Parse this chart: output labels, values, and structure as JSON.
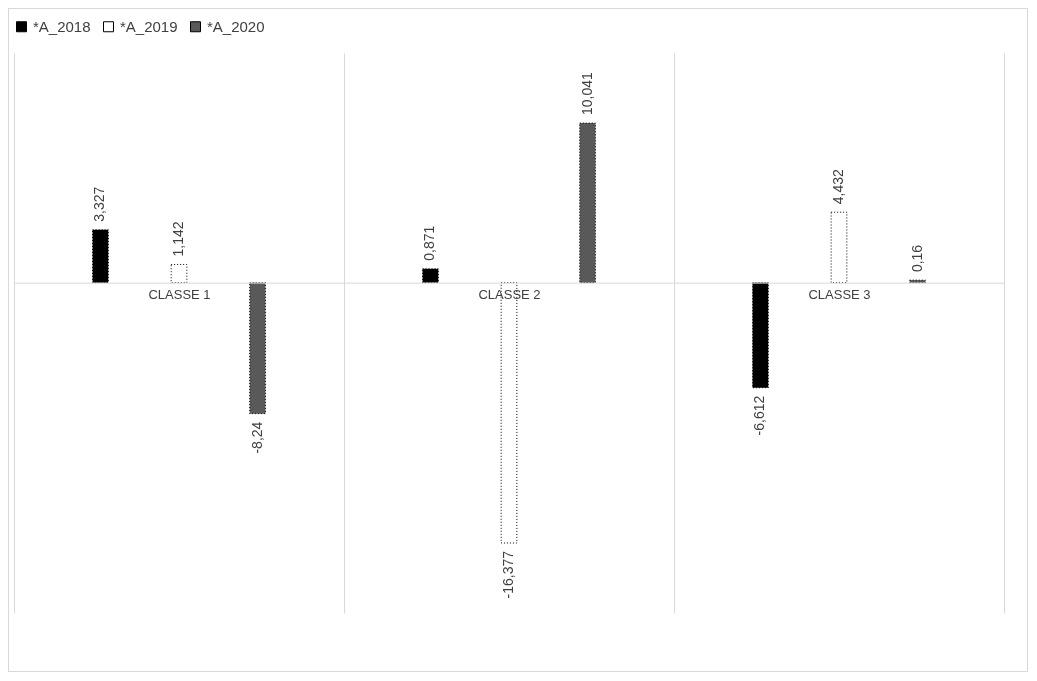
{
  "chart_data": {
    "type": "bar",
    "categories": [
      "CLASSE 1",
      "CLASSE 2",
      "CLASSE 3"
    ],
    "series": [
      {
        "name": "*A_2018",
        "color": "#000000",
        "values": [
          3.327,
          0.871,
          -6.612
        ],
        "value_labels": [
          "3,327",
          "0,871",
          "-6,612"
        ]
      },
      {
        "name": "*A_2019",
        "color": "#ffffff",
        "values": [
          1.142,
          -16.377,
          4.432
        ],
        "value_labels": [
          "1,142",
          "-16,377",
          "4,432"
        ]
      },
      {
        "name": "*A_2020",
        "color": "#595959",
        "values": [
          -8.24,
          10.041,
          0.16
        ],
        "value_labels": [
          "-8,24",
          "10,041",
          "0,16"
        ]
      }
    ],
    "grid": "x",
    "legend": "top",
    "tick_labels": "x"
  }
}
